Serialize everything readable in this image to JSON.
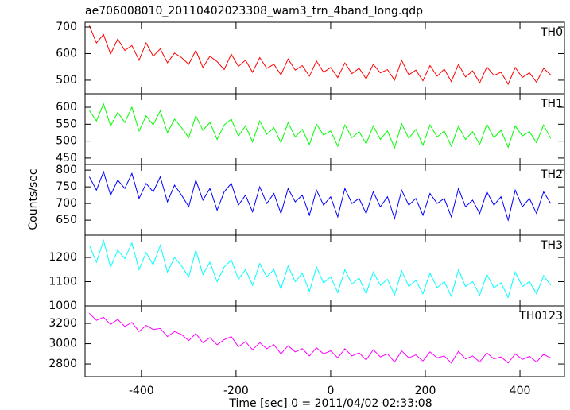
{
  "ylabel": "Counts/sec",
  "chart_data": [
    {
      "type": "line",
      "title": "ae706008010_20110402023308_wam3_trn_4band_long.qdp",
      "label": "TH0",
      "color": "#ff0000",
      "x": [
        -510,
        -495,
        -480,
        -465,
        -450,
        -435,
        -420,
        -405,
        -390,
        -375,
        -360,
        -345,
        -330,
        -315,
        -300,
        -285,
        -270,
        -255,
        -240,
        -225,
        -210,
        -195,
        -180,
        -165,
        -150,
        -135,
        -120,
        -105,
        -90,
        -75,
        -60,
        -45,
        -30,
        -15,
        0,
        15,
        30,
        45,
        60,
        75,
        90,
        105,
        120,
        135,
        150,
        165,
        180,
        195,
        210,
        225,
        240,
        255,
        270,
        285,
        300,
        315,
        330,
        345,
        360,
        375,
        390,
        405,
        420,
        435,
        450,
        465
      ],
      "values": [
        705,
        640,
        672,
        598,
        655,
        612,
        630,
        575,
        640,
        590,
        618,
        566,
        602,
        585,
        560,
        612,
        548,
        590,
        570,
        540,
        598,
        552,
        575,
        530,
        585,
        545,
        560,
        520,
        580,
        538,
        555,
        515,
        572,
        530,
        548,
        510,
        565,
        525,
        545,
        505,
        560,
        528,
        540,
        500,
        575,
        520,
        538,
        498,
        555,
        515,
        542,
        495,
        560,
        512,
        535,
        490,
        550,
        518,
        530,
        485,
        548,
        510,
        528,
        492,
        545,
        520
      ],
      "ylim": [
        449,
        718
      ],
      "yticks": [
        500,
        600,
        700
      ]
    },
    {
      "type": "line",
      "label": "TH1",
      "color": "#00ff00",
      "x": [
        -510,
        -495,
        -480,
        -465,
        -450,
        -435,
        -420,
        -405,
        -390,
        -375,
        -360,
        -345,
        -330,
        -315,
        -300,
        -285,
        -270,
        -255,
        -240,
        -225,
        -210,
        -195,
        -180,
        -165,
        -150,
        -135,
        -120,
        -105,
        -90,
        -75,
        -60,
        -45,
        -30,
        -15,
        0,
        15,
        30,
        45,
        60,
        75,
        90,
        105,
        120,
        135,
        150,
        165,
        180,
        195,
        210,
        225,
        240,
        255,
        270,
        285,
        300,
        315,
        330,
        345,
        360,
        375,
        390,
        405,
        420,
        435,
        450,
        465
      ],
      "values": [
        590,
        560,
        610,
        545,
        585,
        555,
        600,
        530,
        575,
        548,
        590,
        525,
        565,
        540,
        510,
        575,
        532,
        555,
        505,
        548,
        565,
        515,
        545,
        498,
        560,
        520,
        540,
        495,
        555,
        512,
        535,
        490,
        550,
        518,
        530,
        485,
        548,
        510,
        528,
        492,
        545,
        505,
        530,
        480,
        552,
        508,
        535,
        488,
        548,
        512,
        530,
        485,
        545,
        505,
        528,
        490,
        550,
        510,
        532,
        482,
        545,
        515,
        528,
        495,
        548,
        508
      ],
      "ylim": [
        431,
        640
      ],
      "yticks": [
        450,
        500,
        550,
        600
      ]
    },
    {
      "type": "line",
      "label": "TH2",
      "color": "#0000ff",
      "x": [
        -510,
        -495,
        -480,
        -465,
        -450,
        -435,
        -420,
        -405,
        -390,
        -375,
        -360,
        -345,
        -330,
        -315,
        -300,
        -285,
        -270,
        -255,
        -240,
        -225,
        -210,
        -195,
        -180,
        -165,
        -150,
        -135,
        -120,
        -105,
        -90,
        -75,
        -60,
        -45,
        -30,
        -15,
        0,
        15,
        30,
        45,
        60,
        75,
        90,
        105,
        120,
        135,
        150,
        165,
        180,
        195,
        210,
        225,
        240,
        255,
        270,
        285,
        300,
        315,
        330,
        345,
        360,
        375,
        390,
        405,
        420,
        435,
        450,
        465
      ],
      "values": [
        780,
        740,
        795,
        725,
        770,
        745,
        790,
        715,
        760,
        735,
        780,
        705,
        755,
        725,
        690,
        770,
        710,
        745,
        680,
        735,
        760,
        695,
        725,
        675,
        750,
        700,
        730,
        670,
        745,
        705,
        725,
        665,
        740,
        695,
        720,
        660,
        745,
        700,
        715,
        670,
        735,
        690,
        720,
        655,
        740,
        695,
        715,
        665,
        730,
        700,
        715,
        660,
        745,
        690,
        710,
        670,
        735,
        695,
        720,
        650,
        740,
        690,
        715,
        670,
        735,
        700
      ],
      "ylim": [
        605,
        817
      ],
      "yticks": [
        650,
        700,
        750,
        800
      ]
    },
    {
      "type": "line",
      "label": "TH3",
      "color": "#00ffff",
      "x": [
        -510,
        -495,
        -480,
        -465,
        -450,
        -435,
        -420,
        -405,
        -390,
        -375,
        -360,
        -345,
        -330,
        -315,
        -300,
        -285,
        -270,
        -255,
        -240,
        -225,
        -210,
        -195,
        -180,
        -165,
        -150,
        -135,
        -120,
        -105,
        -90,
        -75,
        -60,
        -45,
        -30,
        -15,
        0,
        15,
        30,
        45,
        60,
        75,
        90,
        105,
        120,
        135,
        150,
        165,
        180,
        195,
        210,
        225,
        240,
        255,
        270,
        285,
        300,
        315,
        330,
        345,
        360,
        375,
        390,
        405,
        420,
        435,
        450,
        465
      ],
      "values": [
        1250,
        1180,
        1270,
        1160,
        1230,
        1195,
        1260,
        1150,
        1220,
        1170,
        1250,
        1140,
        1200,
        1165,
        1120,
        1230,
        1130,
        1180,
        1100,
        1160,
        1190,
        1110,
        1150,
        1085,
        1175,
        1120,
        1150,
        1070,
        1165,
        1100,
        1135,
        1060,
        1160,
        1095,
        1120,
        1055,
        1150,
        1090,
        1115,
        1050,
        1140,
        1085,
        1110,
        1045,
        1145,
        1080,
        1105,
        1050,
        1135,
        1075,
        1100,
        1040,
        1150,
        1080,
        1100,
        1045,
        1130,
        1075,
        1095,
        1035,
        1140,
        1080,
        1100,
        1050,
        1125,
        1085
      ],
      "ylim": [
        1000,
        1292
      ],
      "yticks": [
        1000,
        1100,
        1200
      ]
    },
    {
      "type": "line",
      "label": "TH0123",
      "color": "#ff00ff",
      "x": [
        -510,
        -495,
        -480,
        -465,
        -450,
        -435,
        -420,
        -405,
        -390,
        -375,
        -360,
        -345,
        -330,
        -315,
        -300,
        -285,
        -270,
        -255,
        -240,
        -225,
        -210,
        -195,
        -180,
        -165,
        -150,
        -135,
        -120,
        -105,
        -90,
        -75,
        -60,
        -45,
        -30,
        -15,
        0,
        15,
        30,
        45,
        60,
        75,
        90,
        105,
        120,
        135,
        150,
        165,
        180,
        195,
        210,
        225,
        240,
        255,
        270,
        285,
        300,
        315,
        330,
        345,
        360,
        375,
        390,
        405,
        420,
        435,
        450,
        465
      ],
      "values": [
        3300,
        3230,
        3260,
        3190,
        3240,
        3170,
        3210,
        3120,
        3180,
        3140,
        3150,
        3070,
        3120,
        3090,
        3030,
        3100,
        3010,
        3060,
        2990,
        3040,
        3070,
        2970,
        3020,
        2940,
        3010,
        2950,
        2990,
        2900,
        2980,
        2920,
        2950,
        2880,
        2960,
        2900,
        2930,
        2860,
        2950,
        2880,
        2910,
        2840,
        2940,
        2870,
        2900,
        2820,
        2930,
        2860,
        2890,
        2830,
        2920,
        2860,
        2880,
        2810,
        2925,
        2850,
        2880,
        2820,
        2910,
        2850,
        2870,
        2810,
        2900,
        2845,
        2875,
        2820,
        2895,
        2860
      ],
      "ylim": [
        2675,
        3373
      ],
      "yticks": [
        2800,
        3000,
        3200
      ],
      "xlabel": "Time [sec] 0 = 2011/04/02 02:33:08",
      "xlim": [
        -519,
        494
      ],
      "xticks": [
        -400,
        -200,
        0,
        200,
        400
      ]
    }
  ]
}
